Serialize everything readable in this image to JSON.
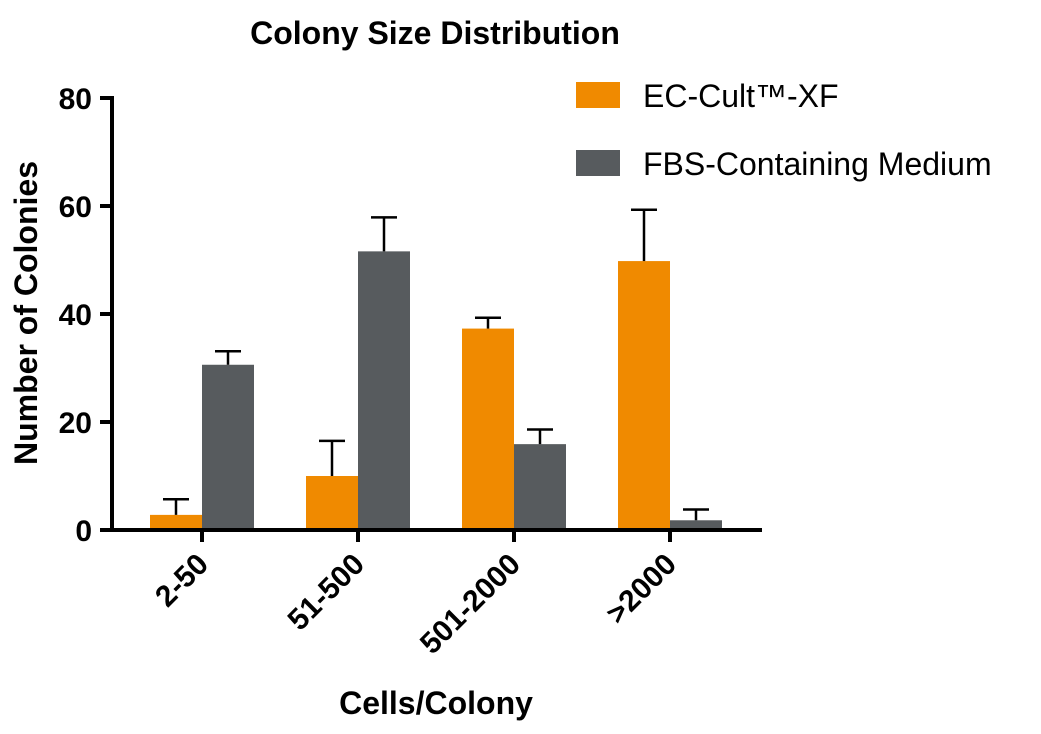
{
  "chart_data": {
    "type": "bar",
    "title": "Colony Size Distribution",
    "xlabel": "Cells/Colony",
    "ylabel": "Number of Colonies",
    "categories": [
      "2-50",
      "51-500",
      "501-2000",
      ">2000"
    ],
    "ylim": [
      0,
      80
    ],
    "yticks": [
      0,
      20,
      40,
      60,
      80
    ],
    "legend_position": "top-right",
    "grid": false,
    "series": [
      {
        "name": "EC-Cult™-XF",
        "color": "#f08a00",
        "values": [
          2.8,
          10,
          37.3,
          49.8
        ],
        "errors": [
          2.9,
          6.5,
          2.0,
          9.5
        ]
      },
      {
        "name": "FBS-Containing Medium",
        "color": "#575b5e",
        "values": [
          30.6,
          51.6,
          15.9,
          1.8
        ],
        "errors": [
          2.5,
          6.3,
          2.7,
          2.0
        ]
      }
    ]
  }
}
